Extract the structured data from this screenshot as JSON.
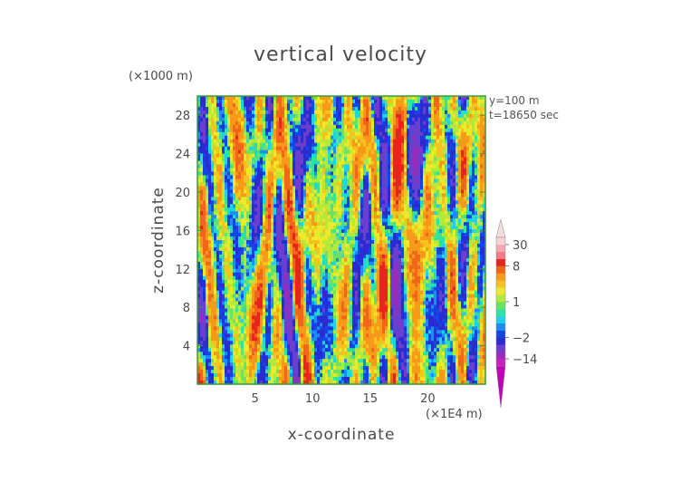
{
  "chart_data": {
    "type": "heatmap",
    "title": "vertical velocity",
    "xlabel": "x-coordinate",
    "ylabel": "z-coordinate",
    "x_unit": "(×1E4 m)",
    "z_unit": "(×1000 m)",
    "xlim": [
      0,
      25
    ],
    "ylim": [
      0,
      30
    ],
    "xticks": [
      5,
      10,
      15,
      20
    ],
    "yticks": [
      4,
      8,
      12,
      16,
      20,
      24,
      28
    ],
    "annotations": [
      "y=100 m",
      "t=18650 sec"
    ],
    "colorbar": {
      "labels": [
        30,
        8,
        1,
        -2,
        -14
      ],
      "levels": [
        -20,
        -14,
        -8,
        -4,
        -2,
        -1,
        -0.5,
        0,
        0.5,
        1,
        2,
        3,
        4,
        6,
        8,
        14,
        20,
        30
      ],
      "colors": [
        "#cc1fc3",
        "#9a2bbb",
        "#6a3fce",
        "#2a2bd0",
        "#1446e6",
        "#1e8cf0",
        "#1fd3e6",
        "#2fe3a3",
        "#6ee062",
        "#b4e83a",
        "#eaea2a",
        "#f5c21e",
        "#f79a1a",
        "#f1661a",
        "#e8241e",
        "#f07a86",
        "#f5a8b1",
        "#f9d2d5"
      ],
      "under_color": "#c000b8",
      "over_color": "#f5dcdc"
    }
  }
}
